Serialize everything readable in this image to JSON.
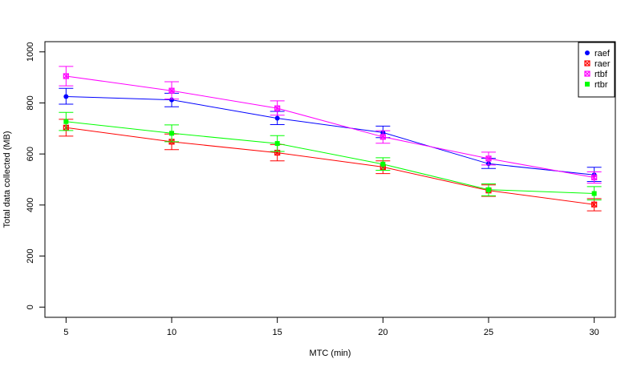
{
  "chart_data": {
    "type": "line",
    "title": "",
    "xlabel": "MTC (min)",
    "ylabel": "Total data collected (MB)",
    "x": [
      5,
      10,
      15,
      20,
      25,
      30
    ],
    "xlim": [
      4,
      31
    ],
    "ylim": [
      -40,
      1040
    ],
    "xticks": [
      "5",
      "10",
      "15",
      "20",
      "25",
      "30"
    ],
    "yticks": [
      "0",
      "200",
      "400",
      "600",
      "800",
      "1000"
    ],
    "grid": false,
    "legend_position": "top-right",
    "series": [
      {
        "name": "raef",
        "color": "#0000ff",
        "marker": "filled-circle",
        "values": [
          825,
          812,
          740,
          684,
          562,
          518
        ],
        "err_low": [
          795,
          785,
          715,
          664,
          543,
          492
        ],
        "err_high": [
          857,
          838,
          767,
          709,
          583,
          548
        ]
      },
      {
        "name": "raer",
        "color": "#ff0000",
        "marker": "x-square",
        "values": [
          703,
          648,
          605,
          549,
          457,
          402
        ],
        "err_low": [
          670,
          617,
          573,
          523,
          434,
          377
        ],
        "err_high": [
          736,
          678,
          637,
          573,
          479,
          425
        ]
      },
      {
        "name": "rtbf",
        "color": "#ff00ff",
        "marker": "x-square",
        "values": [
          905,
          848,
          779,
          667,
          582,
          508
        ],
        "err_low": [
          867,
          815,
          752,
          642,
          557,
          486
        ],
        "err_high": [
          943,
          883,
          808,
          691,
          607,
          530
        ]
      },
      {
        "name": "rtbr",
        "color": "#00ff00",
        "marker": "filled-square",
        "values": [
          727,
          681,
          641,
          560,
          460,
          445
        ],
        "err_low": [
          692,
          648,
          610,
          536,
          436,
          420
        ],
        "err_high": [
          763,
          714,
          672,
          585,
          483,
          472
        ]
      }
    ]
  }
}
